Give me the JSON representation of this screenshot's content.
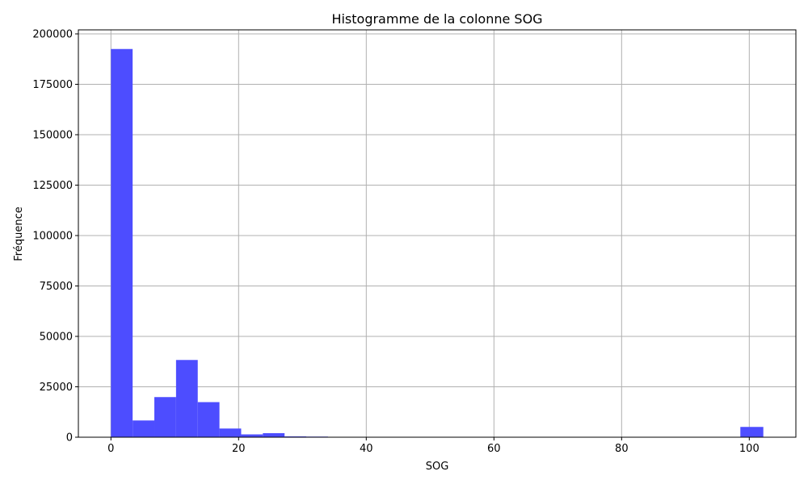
{
  "chart_data": {
    "type": "bar",
    "title": "Histogramme de la colonne SOG",
    "xlabel": "SOG",
    "ylabel": "Fréquence",
    "xlim": [
      -5.1,
      107.3
    ],
    "ylim": [
      0,
      202000
    ],
    "x_ticks": [
      0,
      20,
      40,
      60,
      80,
      100
    ],
    "y_ticks": [
      0,
      25000,
      50000,
      75000,
      100000,
      125000,
      150000,
      175000,
      200000
    ],
    "grid": true,
    "bar_color": "#4d4dff",
    "bin_edges": [
      0,
      3.4,
      6.8,
      10.2,
      13.6,
      17.0,
      20.4,
      23.8,
      27.2,
      30.6,
      34.0,
      37.4,
      40.8,
      44.2,
      47.6,
      51.0,
      54.4,
      57.8,
      61.2,
      64.6,
      68.0,
      71.4,
      74.8,
      78.2,
      81.6,
      85.0,
      88.4,
      91.8,
      95.2,
      98.6,
      102.2
    ],
    "values": [
      192500,
      8300,
      19900,
      38300,
      17400,
      4300,
      1400,
      2000,
      400,
      300,
      0,
      0,
      0,
      0,
      0,
      0,
      0,
      0,
      0,
      0,
      0,
      0,
      0,
      0,
      0,
      0,
      0,
      0,
      0,
      5100
    ]
  }
}
